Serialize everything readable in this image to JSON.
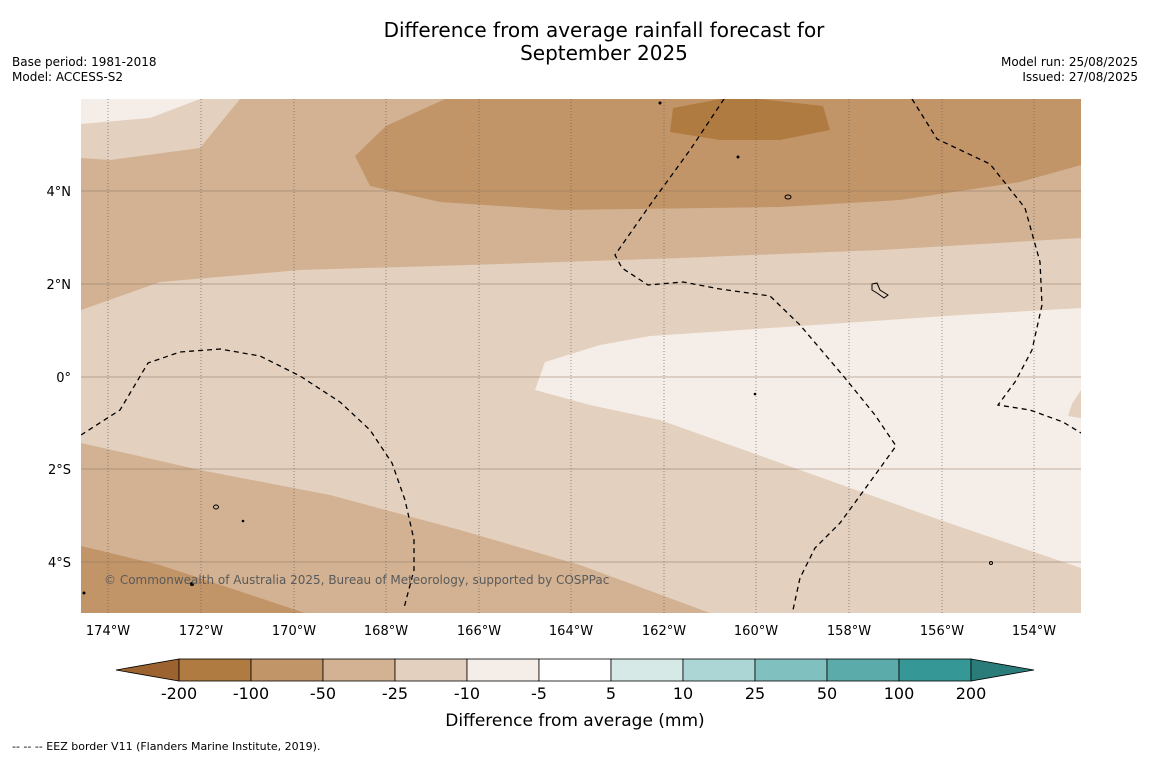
{
  "title": "Difference from average rainfall forecast for\nSeptember 2025",
  "meta_left": "Base period: 1981-2018\nModel: ACCESS-S2",
  "meta_right": "Model run: 25/08/2025\nIssued: 27/08/2025",
  "map": {
    "lon_labels": [
      "174°W",
      "172°W",
      "170°W",
      "168°W",
      "166°W",
      "164°W",
      "162°W",
      "160°W",
      "158°W",
      "156°W",
      "154°W"
    ],
    "lat_labels": [
      "4°N",
      "2°N",
      "0°",
      "2°S",
      "4°S"
    ],
    "copyright": "© Commonwealth of Australia 2025, Bureau of Meteorology, supported by COSPPac",
    "colors": {
      "m200": "#9c6330",
      "m100_200": "#b07b40",
      "m50_100": "#c29569",
      "m25_50": "#d2b293",
      "m10_25": "#e3d0be",
      "m5_10": "#f5ede7",
      "p5": "#ffffff",
      "p5_10": "#d6e9e7",
      "p10_25": "#acd6d5",
      "p25_50": "#80c1bf",
      "p50_100": "#5aabaa",
      "p100_200": "#359896",
      "p200": "#2a7c7a"
    }
  },
  "colorbar": {
    "ticks": [
      "-200",
      "-100",
      "-50",
      "-25",
      "-10",
      "-5",
      "5",
      "10",
      "25",
      "50",
      "100",
      "200"
    ],
    "label": "Difference from average (mm)"
  },
  "footnote": "--  --  -- EEZ border V11 (Flanders Marine Institute, 2019)."
}
